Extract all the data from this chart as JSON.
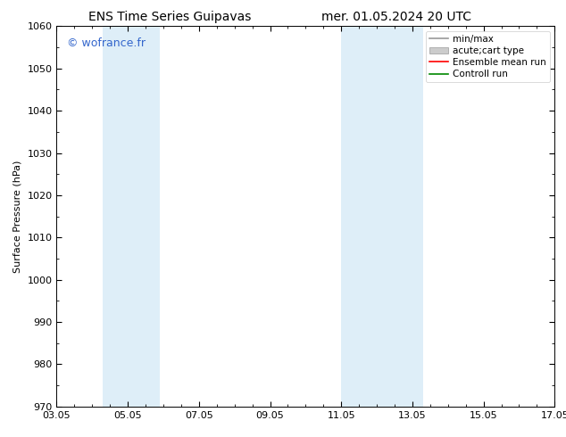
{
  "title_left": "ENS Time Series Guipavas",
  "title_right": "mer. 01.05.2024 20 UTC",
  "ylabel": "Surface Pressure (hPa)",
  "ylim": [
    970,
    1060
  ],
  "yticks": [
    970,
    980,
    990,
    1000,
    1010,
    1020,
    1030,
    1040,
    1050,
    1060
  ],
  "xtick_labels": [
    "03.05",
    "05.05",
    "07.05",
    "09.05",
    "11.05",
    "13.05",
    "15.05",
    "17.05"
  ],
  "xtick_positions": [
    0,
    2,
    4,
    6,
    8,
    10,
    12,
    14
  ],
  "xlim_start": 0,
  "xlim_end": 14,
  "shaded_bands": [
    {
      "xstart": 1.3,
      "xend": 2.9,
      "color": "#deeef8"
    },
    {
      "xstart": 8.0,
      "xend": 10.3,
      "color": "#deeef8"
    }
  ],
  "watermark": "© wofrance.fr",
  "watermark_color": "#3366cc",
  "background_color": "#ffffff",
  "plot_bg_color": "#ffffff",
  "legend_entries": [
    {
      "label": "min/max",
      "color": "#999999",
      "style": "line"
    },
    {
      "label": "acute;cart type",
      "color": "#cccccc",
      "style": "band"
    },
    {
      "label": "Ensemble mean run",
      "color": "#ff0000",
      "style": "line"
    },
    {
      "label": "Controll run",
      "color": "#008800",
      "style": "line"
    }
  ],
  "title_fontsize": 10,
  "axis_label_fontsize": 8,
  "tick_fontsize": 8,
  "legend_fontsize": 7.5,
  "watermark_fontsize": 9
}
